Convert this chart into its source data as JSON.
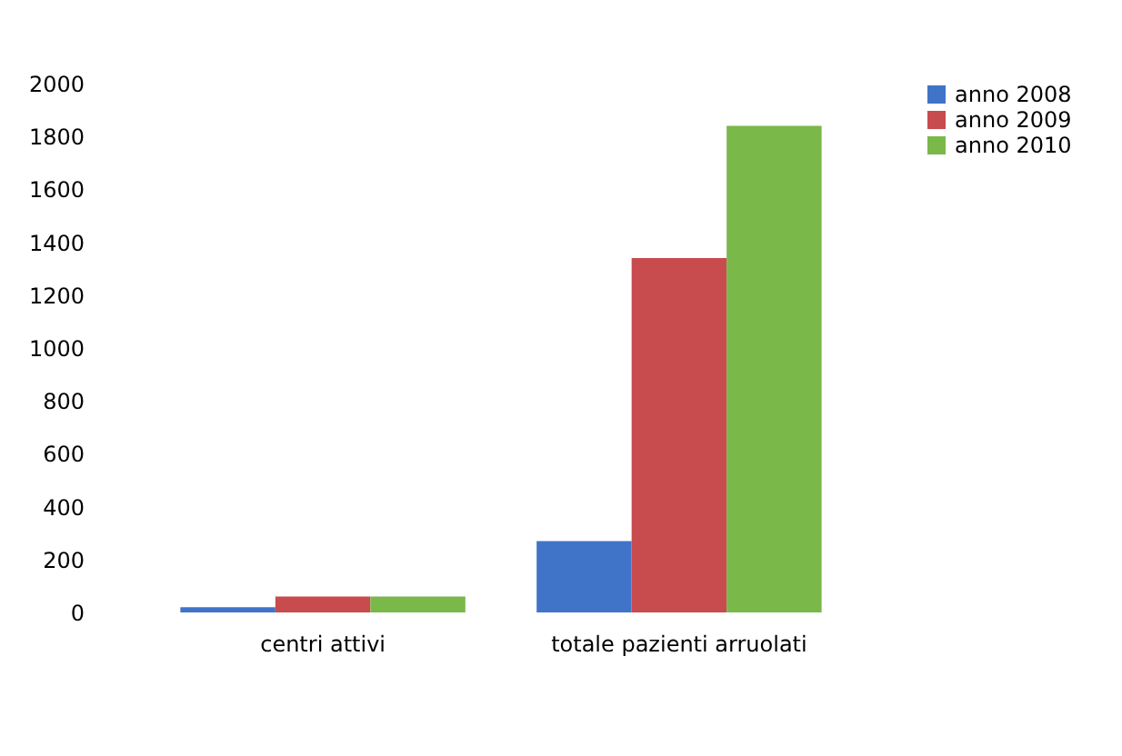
{
  "chart_data": {
    "type": "bar",
    "categories": [
      "centri attivi",
      "totale pazienti arruolati"
    ],
    "series": [
      {
        "name": "anno 2008",
        "color": "#3f74c9",
        "values": [
          20,
          270
        ]
      },
      {
        "name": "anno 2009",
        "color": "#c84b4e",
        "values": [
          60,
          1340
        ]
      },
      {
        "name": "anno 2010",
        "color": "#7ab84a",
        "values": [
          60,
          1840
        ]
      }
    ],
    "ylim": [
      0,
      2000
    ],
    "yticks": [
      0,
      200,
      400,
      600,
      800,
      1000,
      1200,
      1400,
      1600,
      1800,
      2000
    ],
    "grid": false,
    "legend": "right"
  }
}
